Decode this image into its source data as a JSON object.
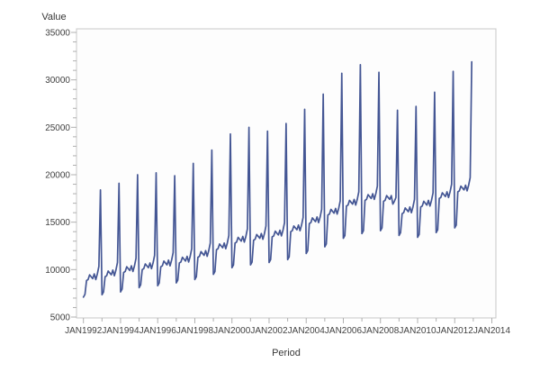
{
  "page": {
    "background": "#ffffff"
  },
  "chart_data": {
    "type": "line",
    "title": "",
    "xlabel": "Period",
    "ylabel": "Value",
    "grid": false,
    "legend_position": "none",
    "x_tick_labels": [
      "JAN1992",
      "JAN1994",
      "JAN1996",
      "JAN1998",
      "JAN2000",
      "JAN2002",
      "JAN2004",
      "JAN2006",
      "JAN2008",
      "JAN2010",
      "JAN2012",
      "JAN2014"
    ],
    "x_minor_tick_years": [
      "JAN1993",
      "JAN1995",
      "JAN1997",
      "JAN1999",
      "JAN2001",
      "JAN2003",
      "JAN2005",
      "JAN2007",
      "JAN2009",
      "JAN2011",
      "JAN2013"
    ],
    "x_axis_span_months": 264,
    "y_tick_labels": [
      "5000",
      "10000",
      "15000",
      "20000",
      "25000",
      "30000",
      "35000"
    ],
    "y_ticks": [
      5000,
      10000,
      15000,
      20000,
      25000,
      30000,
      35000
    ],
    "y_minor_step": 1000,
    "ylim": [
      5000,
      35000
    ],
    "frame_color": "#c8c8c8",
    "tick_color": "#b0b0b0",
    "plot_fill": "#fdfdfd",
    "series": [
      {
        "name": "Value",
        "color": "#445694",
        "start": "JAN1992",
        "frequency": "monthly",
        "values": [
          7100,
          7400,
          8850,
          8950,
          9450,
          9250,
          9050,
          9550,
          8950,
          9550,
          10350,
          18400,
          7350,
          7650,
          9250,
          9350,
          9850,
          9650,
          9450,
          9950,
          9350,
          9950,
          10750,
          19100,
          7650,
          7950,
          9700,
          9800,
          10300,
          10100,
          9900,
          10400,
          9800,
          10400,
          11200,
          20000,
          8100,
          8400,
          10000,
          10100,
          10600,
          10400,
          10200,
          10700,
          10100,
          10700,
          11500,
          20200,
          8300,
          8600,
          10300,
          10400,
          10900,
          10700,
          10500,
          11000,
          10400,
          11000,
          11800,
          19900,
          8600,
          8900,
          10700,
          10800,
          11300,
          11100,
          10900,
          11400,
          10800,
          11400,
          12200,
          21200,
          8950,
          9250,
          11300,
          11400,
          11900,
          11700,
          11500,
          12000,
          11400,
          12000,
          12800,
          22600,
          9500,
          9800,
          12100,
          12200,
          12700,
          12500,
          12300,
          12800,
          12200,
          12800,
          13600,
          24300,
          10200,
          10500,
          12800,
          12900,
          13400,
          13200,
          13000,
          13500,
          12900,
          13500,
          14300,
          25000,
          10500,
          10800,
          13100,
          13200,
          13700,
          13500,
          13300,
          13800,
          13200,
          13800,
          14600,
          24600,
          10750,
          11050,
          13450,
          13550,
          14050,
          13850,
          13650,
          14150,
          13550,
          14150,
          14950,
          25400,
          11050,
          11350,
          14000,
          14100,
          14600,
          14400,
          14200,
          14700,
          14100,
          14700,
          15500,
          26900,
          11700,
          12000,
          14850,
          14950,
          15450,
          15250,
          15050,
          15550,
          14950,
          15550,
          16350,
          28500,
          12400,
          12700,
          15750,
          15850,
          16350,
          16150,
          15950,
          16450,
          15850,
          16450,
          17250,
          30700,
          13300,
          13600,
          16700,
          16800,
          17300,
          17100,
          16900,
          17400,
          16800,
          17400,
          18200,
          31600,
          13800,
          14100,
          17300,
          17400,
          17900,
          17700,
          17500,
          18000,
          17400,
          18000,
          18800,
          30800,
          14100,
          14400,
          17200,
          17300,
          17800,
          17600,
          17400,
          17800,
          16900,
          17200,
          17600,
          26800,
          13600,
          13900,
          15900,
          16000,
          16500,
          16300,
          16100,
          16600,
          16000,
          16600,
          17400,
          27200,
          13400,
          13700,
          16600,
          16700,
          17200,
          17000,
          16800,
          17300,
          16700,
          17300,
          18100,
          28700,
          13900,
          14200,
          17500,
          17600,
          18100,
          17900,
          17700,
          18200,
          17600,
          18200,
          19000,
          30900,
          14400,
          14700,
          18200,
          18300,
          18800,
          18600,
          18400,
          18900,
          18300,
          18900,
          19700,
          31900
        ]
      }
    ]
  }
}
